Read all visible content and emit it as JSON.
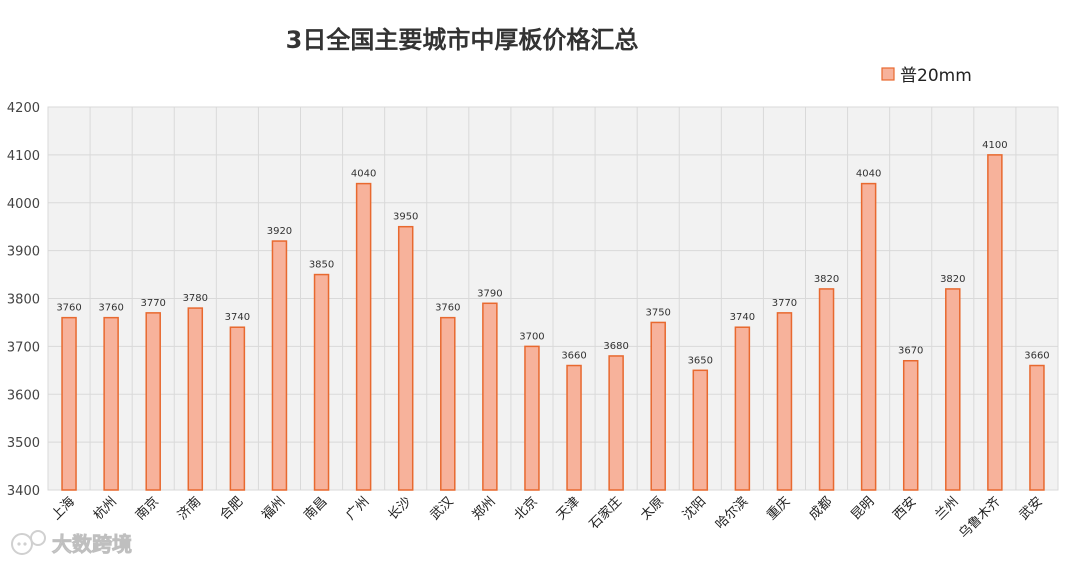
{
  "chart_data": {
    "type": "bar",
    "title": "3日全国主要城市中厚板价格汇总",
    "categories": [
      "上海",
      "杭州",
      "南京",
      "济南",
      "合肥",
      "福州",
      "南昌",
      "广州",
      "长沙",
      "武汉",
      "郑州",
      "北京",
      "天津",
      "石家庄",
      "太原",
      "沈阳",
      "哈尔滨",
      "重庆",
      "成都",
      "昆明",
      "西安",
      "兰州",
      "乌鲁木齐",
      "武安"
    ],
    "series": [
      {
        "name": "普20mm",
        "values": [
          3760,
          3760,
          3770,
          3780,
          3740,
          3920,
          3850,
          4040,
          3950,
          3760,
          3790,
          3700,
          3660,
          3680,
          3750,
          3650,
          3740,
          3770,
          3820,
          4040,
          3670,
          3820,
          4100,
          3660
        ]
      }
    ],
    "ylim": [
      3400,
      4200
    ],
    "yticks": [
      3400,
      3500,
      3600,
      3700,
      3800,
      3900,
      4000,
      4100,
      4200
    ],
    "xlabel": "",
    "ylabel": "",
    "grid": true,
    "legend_position": "top-right",
    "colors": {
      "bar_fill": "#f7b29b",
      "bar_stroke": "#e8692f",
      "plot_bg": "#f2f2f2",
      "grid": "#d9d9d9"
    }
  },
  "watermark": {
    "text": "大数跨境",
    "icon": "chat-bubble-logo-icon"
  }
}
